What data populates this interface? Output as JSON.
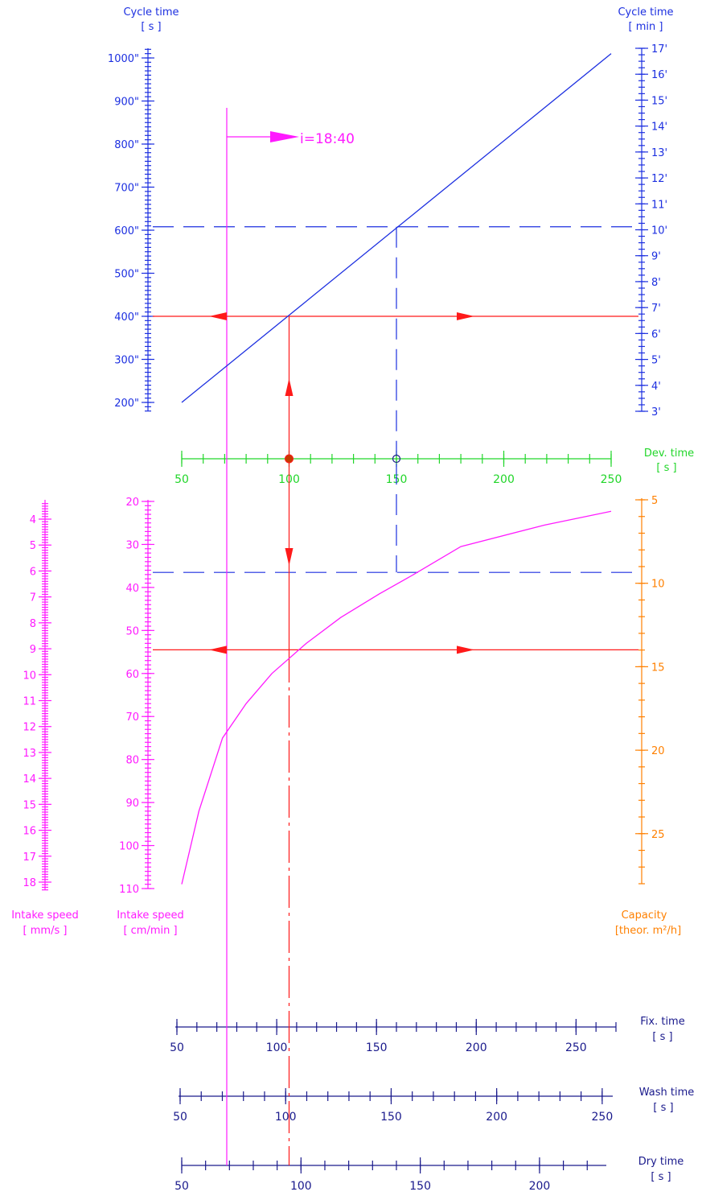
{
  "colors": {
    "blue": "#1c2fe0",
    "navy": "#1a1a8c",
    "green": "#22d62a",
    "magenta": "#ff1aff",
    "orange": "#ff8000",
    "red": "#ff1a1a",
    "dark_red": "#c43c00"
  },
  "labels": {
    "cycle_s": [
      "Cycle time",
      "[ s ]"
    ],
    "cycle_min": [
      "Cycle time",
      "[ min ]"
    ],
    "dev": [
      "Dev. time",
      "[ s ]"
    ],
    "intake_mm": [
      "Intake speed",
      "[ mm/s ]"
    ],
    "intake_cm": [
      "Intake speed",
      "[ cm/min ]"
    ],
    "capacity": [
      "Capacity",
      "[theor. m²/h]"
    ],
    "fix": [
      "Fix. time",
      "[ s ]"
    ],
    "wash": [
      "Wash time",
      "[ s ]"
    ],
    "dry": [
      "Dry time",
      "[ s ]"
    ],
    "ratio": "i=18:40"
  },
  "chart_data": {
    "type": "nomogram",
    "axes": {
      "cycle_time_s": {
        "label": "Cycle time [ s ]",
        "range": [
          200,
          1000
        ],
        "major_ticks": [
          200,
          300,
          400,
          500,
          600,
          700,
          800,
          900,
          1000
        ],
        "tick_suffix": "\""
      },
      "cycle_time_min": {
        "label": "Cycle time [ min ]",
        "range": [
          3,
          17
        ],
        "major_ticks": [
          3,
          4,
          5,
          6,
          7,
          8,
          9,
          10,
          11,
          12,
          13,
          14,
          15,
          16,
          17
        ],
        "tick_suffix": "'"
      },
      "dev_time_s": {
        "label": "Dev. time [ s ]",
        "range": [
          50,
          250
        ],
        "major_ticks": [
          50,
          100,
          150,
          200,
          250
        ]
      },
      "intake_speed_cm_min": {
        "label": "Intake speed [ cm/min ]",
        "range": [
          20,
          110
        ],
        "major_ticks": [
          20,
          30,
          40,
          50,
          60,
          70,
          80,
          90,
          100,
          110
        ]
      },
      "intake_speed_mm_s": {
        "label": "Intake speed [ mm/s ]",
        "range": [
          3.5,
          18.3
        ],
        "major_ticks": [
          4,
          5,
          6,
          7,
          8,
          9,
          10,
          11,
          12,
          13,
          14,
          15,
          16,
          17,
          18
        ]
      },
      "capacity_m2_h": {
        "label": "Capacity [theor. m²/h]",
        "range": [
          5,
          28
        ],
        "major_ticks": [
          5,
          10,
          15,
          20,
          25
        ]
      },
      "fix_time_s": {
        "label": "Fix. time [ s ]",
        "range": [
          50,
          270
        ],
        "major_ticks": [
          50,
          100,
          150,
          200,
          250
        ]
      },
      "wash_time_s": {
        "label": "Wash time [ s ]",
        "range": [
          50,
          255
        ],
        "major_ticks": [
          50,
          100,
          150,
          200,
          250
        ]
      },
      "dry_time_s": {
        "label": "Dry time [ s ]",
        "range": [
          50,
          228
        ],
        "major_ticks": [
          50,
          100,
          150,
          200
        ]
      }
    },
    "series": [
      {
        "name": "i=18:40",
        "relation": "cycle time vs dev. time",
        "x": [
          50,
          250
        ],
        "y": [
          200,
          1010
        ]
      },
      {
        "relation": "intake speed vs dev. time",
        "x": [
          50,
          58,
          69,
          80,
          92,
          108,
          124,
          142,
          158,
          180,
          219,
          250
        ],
        "y": [
          109,
          92,
          75,
          67,
          60,
          53,
          47,
          41.5,
          37,
          30.5,
          25.5,
          22.3
        ]
      }
    ],
    "example_reading": {
      "dev_time": 100,
      "cycle_time": 400,
      "intake_speed_cm_min": 54.5,
      "vertical_line_value": 105,
      "ratio_line_value": 70
    },
    "secondary_reading": {
      "dev_time": 150,
      "cycle_time": 608,
      "intake_speed_cm_min": 36.5
    }
  }
}
